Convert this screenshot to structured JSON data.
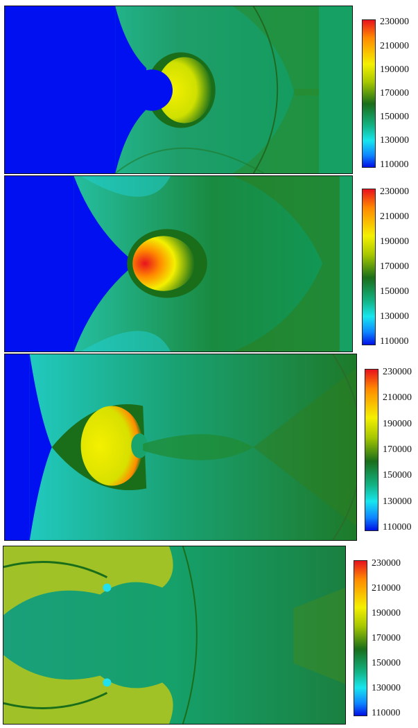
{
  "colorbar": {
    "ticks": [
      "230000",
      "210000",
      "190000",
      "170000",
      "150000",
      "130000",
      "110000"
    ],
    "colors": [
      "#0010e6",
      "#0d86ff",
      "#17e6ee",
      "#12b486",
      "#1a6e1a",
      "#a8c800",
      "#f4f000",
      "#ff8a00",
      "#e8121e"
    ]
  },
  "panels": [
    {
      "colorbar": {
        "ticks": [
          "230000",
          "210000",
          "190000",
          "170000",
          "150000",
          "130000",
          "110000"
        ]
      }
    },
    {
      "colorbar": {
        "ticks": [
          "230000",
          "210000",
          "190000",
          "170000",
          "150000",
          "130000",
          "110000"
        ]
      }
    },
    {
      "colorbar": {
        "ticks": [
          "230000",
          "210000",
          "190000",
          "170000",
          "150000",
          "130000",
          "110000"
        ]
      }
    },
    {
      "colorbar": {
        "ticks": [
          "230000",
          "210000",
          "190000",
          "170000",
          "150000",
          "130000",
          "110000"
        ]
      }
    }
  ]
}
